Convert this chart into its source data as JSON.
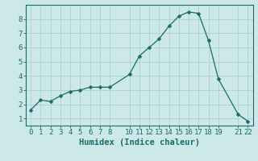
{
  "x": [
    0,
    1,
    2,
    3,
    4,
    5,
    6,
    7,
    8,
    10,
    11,
    12,
    13,
    14,
    15,
    16,
    17,
    18,
    19,
    21,
    22
  ],
  "y": [
    1.6,
    2.3,
    2.2,
    2.6,
    2.9,
    3.0,
    3.2,
    3.2,
    3.2,
    4.1,
    5.4,
    6.0,
    6.6,
    7.5,
    8.2,
    8.5,
    8.4,
    6.5,
    3.8,
    1.3,
    0.8
  ],
  "line_color": "#1a6b6b",
  "marker": "D",
  "marker_size": 2.5,
  "bg_color": "#cce8e8",
  "grid_color": "#b0d4d4",
  "xlabel": "Humidex (Indice chaleur)",
  "xlim": [
    -0.5,
    22.5
  ],
  "ylim": [
    0.5,
    9.0
  ],
  "xticks": [
    0,
    1,
    2,
    3,
    4,
    5,
    6,
    7,
    8,
    10,
    11,
    12,
    13,
    14,
    15,
    16,
    17,
    18,
    19,
    21,
    22
  ],
  "yticks": [
    1,
    2,
    3,
    4,
    5,
    6,
    7,
    8
  ],
  "tick_fontsize": 6.5,
  "label_fontsize": 7.5,
  "axis_color": "#1a6b6b",
  "tick_color": "#1a6b6b"
}
